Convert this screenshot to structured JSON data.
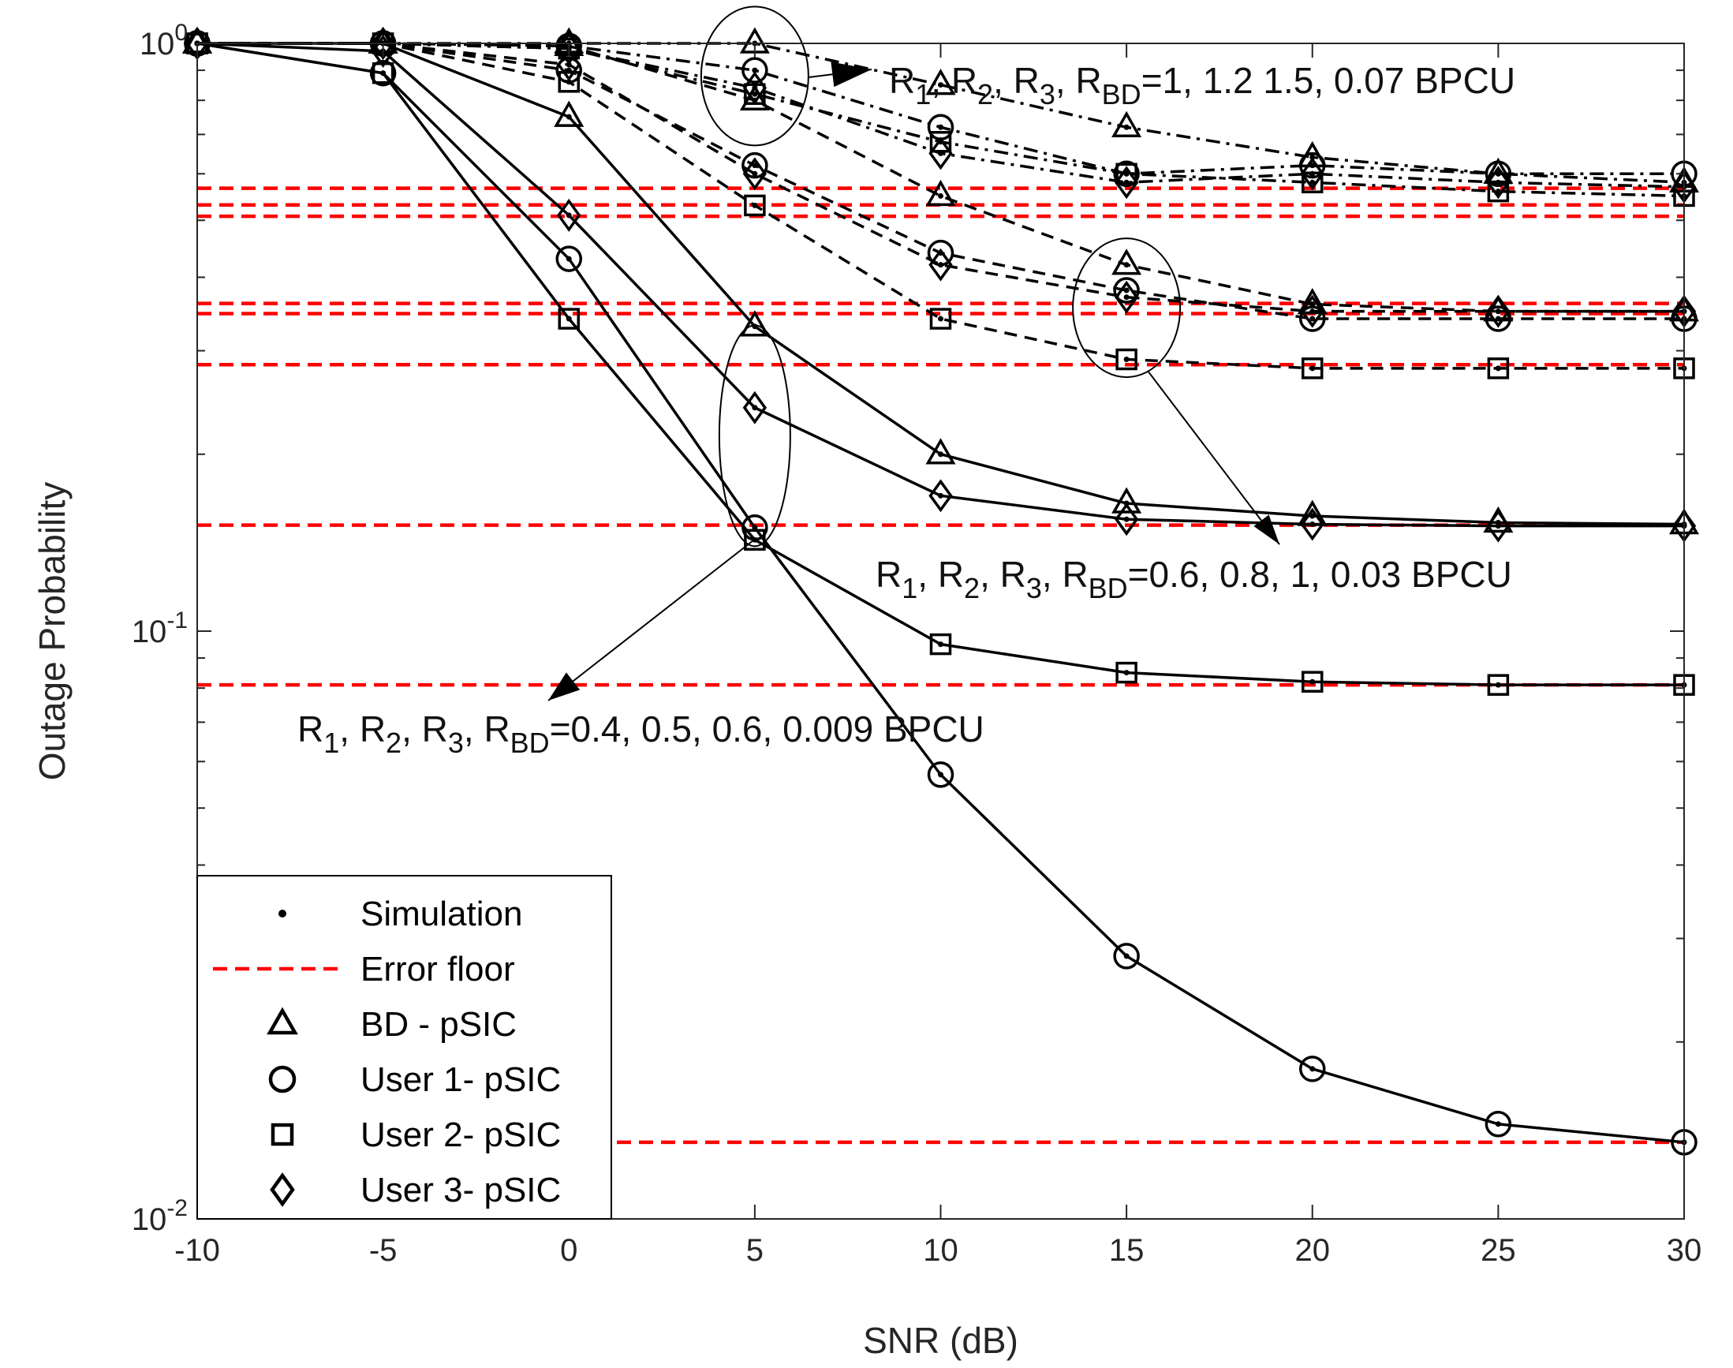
{
  "chart_data": {
    "type": "line",
    "xlabel": "SNR (dB)",
    "ylabel": "Outage Probability",
    "yscale": "log",
    "xlim": [
      -10,
      30
    ],
    "ylim": [
      0.01,
      1
    ],
    "grid": false,
    "x": [
      -10,
      -5,
      0,
      5,
      10,
      15,
      20,
      25,
      30
    ],
    "x_tick_labels": [
      "-10",
      "-5",
      "0",
      "5",
      "10",
      "15",
      "20",
      "25",
      "30"
    ],
    "y_ticks": [
      {
        "value": 1,
        "base": "10",
        "exp": "0"
      },
      {
        "value": 0.1,
        "base": "10",
        "exp": "-1"
      },
      {
        "value": 0.01,
        "base": "10",
        "exp": "-2"
      }
    ],
    "series": [
      {
        "name": "BD - pSIC",
        "group": "R=1,1.2,1.5,0.07",
        "marker": "triangle",
        "style": "dashdot",
        "values": [
          1,
          1,
          1,
          1,
          0.85,
          0.72,
          0.64,
          0.6,
          0.58
        ]
      },
      {
        "name": "User 1- pSIC",
        "group": "R=1,1.2,1.5,0.07",
        "marker": "circle",
        "style": "dashdot",
        "values": [
          1,
          1,
          0.99,
          0.9,
          0.72,
          0.6,
          0.62,
          0.6,
          0.6
        ]
      },
      {
        "name": "User 2- pSIC",
        "group": "R=1,1.2,1.5,0.07",
        "marker": "square",
        "style": "dashdot",
        "values": [
          1,
          1,
          0.98,
          0.82,
          0.68,
          0.6,
          0.58,
          0.56,
          0.55
        ]
      },
      {
        "name": "User 3- pSIC",
        "group": "R=1,1.2,1.5,0.07",
        "marker": "diamond",
        "style": "dashdot",
        "values": [
          1,
          1,
          0.98,
          0.84,
          0.65,
          0.58,
          0.6,
          0.58,
          0.57
        ]
      },
      {
        "name": "BD - pSIC",
        "group": "R=0.6,0.8,1,0.03",
        "marker": "triangle",
        "style": "dashed",
        "values": [
          1,
          1,
          0.99,
          0.8,
          0.55,
          0.42,
          0.36,
          0.35,
          0.35
        ]
      },
      {
        "name": "User 1- pSIC",
        "group": "R=0.6,0.8,1,0.03",
        "marker": "circle",
        "style": "dashed",
        "values": [
          1,
          1,
          0.9,
          0.62,
          0.44,
          0.38,
          0.34,
          0.34,
          0.34
        ]
      },
      {
        "name": "User 2- pSIC",
        "group": "R=0.6,0.8,1,0.03",
        "marker": "square",
        "style": "dashed",
        "values": [
          1,
          1,
          0.86,
          0.53,
          0.34,
          0.29,
          0.28,
          0.28,
          0.28
        ]
      },
      {
        "name": "User 3- pSIC",
        "group": "R=0.6,0.8,1,0.03",
        "marker": "diamond",
        "style": "dashed",
        "values": [
          1,
          1,
          0.92,
          0.6,
          0.42,
          0.37,
          0.35,
          0.35,
          0.35
        ]
      },
      {
        "name": "BD - pSIC",
        "group": "R=0.4,0.5,0.6,0.009",
        "marker": "triangle",
        "style": "solid",
        "values": [
          1,
          1,
          0.75,
          0.33,
          0.2,
          0.165,
          0.157,
          0.153,
          0.152
        ]
      },
      {
        "name": "User 1- pSIC",
        "group": "R=0.4,0.5,0.6,0.009",
        "marker": "circle",
        "style": "solid",
        "values": [
          1,
          0.89,
          0.43,
          0.15,
          0.057,
          0.028,
          0.018,
          0.0145,
          0.0135
        ]
      },
      {
        "name": "User 2- pSIC",
        "group": "R=0.4,0.5,0.6,0.009",
        "marker": "square",
        "style": "solid",
        "values": [
          1,
          0.89,
          0.34,
          0.143,
          0.095,
          0.085,
          0.082,
          0.081,
          0.081
        ]
      },
      {
        "name": "User 3- pSIC",
        "group": "R=0.4,0.5,0.6,0.009",
        "marker": "diamond",
        "style": "solid",
        "values": [
          1,
          0.97,
          0.51,
          0.24,
          0.17,
          0.155,
          0.152,
          0.151,
          0.151
        ]
      }
    ],
    "error_floors": [
      0.567,
      0.531,
      0.508,
      0.361,
      0.347,
      0.284,
      0.1515,
      0.081,
      0.0135
    ],
    "annotations": [
      {
        "parts": [
          "R",
          "1",
          ", R",
          "2",
          ", R",
          "3",
          ", R",
          "BD",
          "=1, 1.2 1.5, 0.07 BPCU"
        ]
      },
      {
        "parts": [
          "R",
          "1",
          ", R",
          "2",
          ", R",
          "3",
          ", R",
          "BD",
          "=0.6, 0.8, 1, 0.03 BPCU"
        ]
      },
      {
        "parts": [
          "R",
          "1",
          ", R",
          "2",
          ", R",
          "3",
          ", R",
          "BD",
          "=0.4, 0.5, 0.6, 0.009 BPCU"
        ]
      }
    ],
    "legend": {
      "position": "bottom-left",
      "entries": [
        {
          "label": "Simulation",
          "symbol": "dot"
        },
        {
          "label": "Error floor",
          "symbol": "red-dashed"
        },
        {
          "label": "BD - pSIC",
          "symbol": "triangle"
        },
        {
          "label": "User 1- pSIC",
          "symbol": "circle"
        },
        {
          "label": "User 2- pSIC",
          "symbol": "square"
        },
        {
          "label": "User 3- pSIC",
          "symbol": "diamond"
        }
      ]
    },
    "colors": {
      "curve": "#000000",
      "floor": "#ff0000",
      "axis": "#262626"
    }
  }
}
